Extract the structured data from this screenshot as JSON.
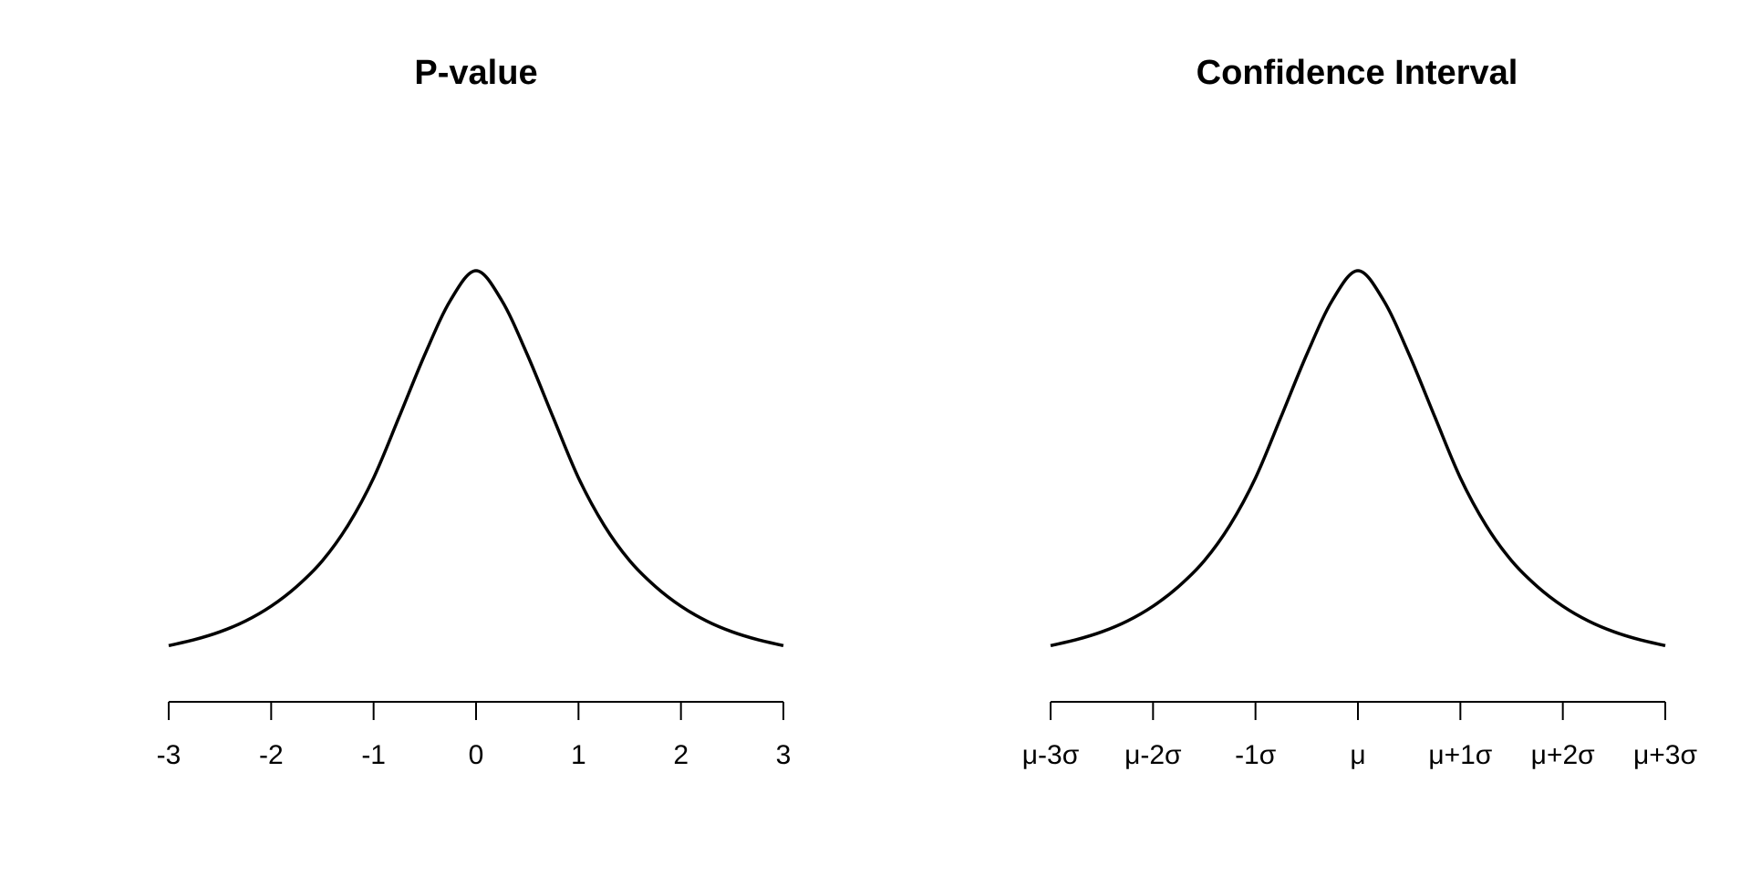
{
  "chart_data": [
    {
      "type": "line",
      "title": "P-value",
      "xlabel": "",
      "ylabel": "",
      "grid": false,
      "xlim": [
        -3,
        3
      ],
      "ylim": [
        0,
        0.4
      ],
      "ticks": [
        -3,
        -2,
        -1,
        0,
        1,
        2,
        3
      ],
      "tick_labels": [
        "-3",
        "-2",
        "-1",
        "0",
        "1",
        "2",
        "3"
      ],
      "series": [
        {
          "x": [
            -3,
            -2.75,
            -2.5,
            -2.25,
            -2,
            -1.75,
            -1.5,
            -1.25,
            -1,
            -0.75,
            -0.5,
            -0.25,
            0,
            0.25,
            0.5,
            0.75,
            1,
            1.25,
            1.5,
            1.75,
            2,
            2.25,
            2.5,
            2.75,
            3
          ],
          "y": [
            0.02,
            0.026,
            0.034,
            0.045,
            0.06,
            0.08,
            0.106,
            0.142,
            0.19,
            0.252,
            0.315,
            0.37,
            0.4,
            0.37,
            0.315,
            0.252,
            0.19,
            0.142,
            0.106,
            0.08,
            0.06,
            0.045,
            0.034,
            0.026,
            0.02
          ]
        }
      ]
    },
    {
      "type": "line",
      "title": "Confidence Interval",
      "xlabel": "",
      "ylabel": "",
      "grid": false,
      "xlim": [
        -3,
        3
      ],
      "ylim": [
        0,
        0.4
      ],
      "ticks": [
        -3,
        -2,
        -1,
        0,
        1,
        2,
        3
      ],
      "tick_labels": [
        "μ-3σ",
        "μ-2σ",
        "-1σ",
        "μ",
        "μ+1σ",
        "μ+2σ",
        "μ+3σ"
      ],
      "series": [
        {
          "x": [
            -3,
            -2.75,
            -2.5,
            -2.25,
            -2,
            -1.75,
            -1.5,
            -1.25,
            -1,
            -0.75,
            -0.5,
            -0.25,
            0,
            0.25,
            0.5,
            0.75,
            1,
            1.25,
            1.5,
            1.75,
            2,
            2.25,
            2.5,
            2.75,
            3
          ],
          "y": [
            0.02,
            0.026,
            0.034,
            0.045,
            0.06,
            0.08,
            0.106,
            0.142,
            0.19,
            0.252,
            0.315,
            0.37,
            0.4,
            0.37,
            0.315,
            0.252,
            0.19,
            0.142,
            0.106,
            0.08,
            0.06,
            0.045,
            0.034,
            0.026,
            0.02
          ]
        }
      ]
    }
  ]
}
